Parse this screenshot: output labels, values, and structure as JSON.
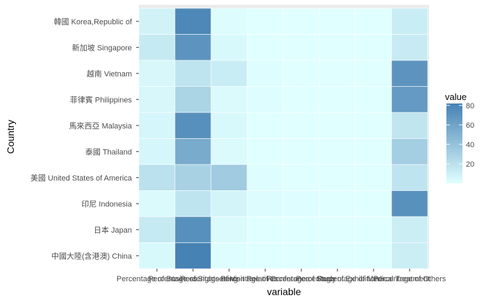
{
  "chart_data": {
    "type": "heatmap",
    "xlabel": "variable",
    "ylabel": "Country",
    "legend_title": "value",
    "legend_ticks": [
      20,
      40,
      60,
      80
    ],
    "value_range": [
      0,
      82
    ],
    "color_low": "#E0FFFF",
    "color_high": "#4682B4",
    "x_categories": [
      "Percentage of Business",
      "Percentage of Sightseeing",
      "Percentage of Visit Relatives",
      "Percentage of Conference",
      "Percentage of Study",
      "Percentage of Exhibition",
      "Percentage of Medical Treatment",
      "Percentage of Others"
    ],
    "y_categories": [
      "韓國 Korea,Republic of",
      "新加坡 Singapore",
      "越南 Vietnam",
      "菲律賓 Philippines",
      "馬來西亞 Malaysia",
      "泰國 Thailand",
      "美國 United States of America",
      "印尼 Indonesia",
      "日本 Japan",
      "中國大陸(含港澳) China"
    ],
    "values": [
      [
        8,
        78,
        2,
        0,
        0,
        0,
        0,
        12
      ],
      [
        14,
        70,
        4,
        0,
        0,
        0,
        0,
        13
      ],
      [
        5,
        18,
        12,
        1,
        0,
        0,
        0,
        70
      ],
      [
        5,
        28,
        3,
        1,
        0,
        0,
        0,
        66
      ],
      [
        6,
        73,
        4,
        0,
        0,
        0,
        0,
        17
      ],
      [
        6,
        55,
        3,
        0,
        0,
        0,
        0,
        32
      ],
      [
        20,
        30,
        34,
        1,
        0,
        0,
        0,
        18
      ],
      [
        3,
        18,
        7,
        2,
        1,
        0,
        0,
        72
      ],
      [
        14,
        73,
        3,
        0,
        0,
        0,
        0,
        11
      ],
      [
        4,
        82,
        1,
        0,
        0,
        0,
        0,
        11
      ]
    ]
  }
}
